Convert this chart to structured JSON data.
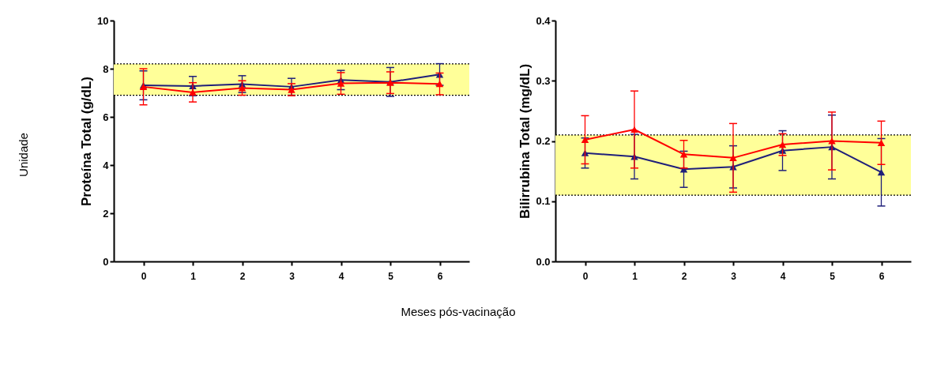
{
  "chart_data": [
    {
      "type": "line",
      "ylabel": "Proteína Total (g/dL)",
      "categories": [
        "0",
        "1",
        "2",
        "3",
        "4",
        "5",
        "6"
      ],
      "ylim": [
        0,
        10
      ],
      "yticks": [
        0,
        2,
        4,
        6,
        8,
        10
      ],
      "grid": false,
      "marker": "triangle",
      "line_style": "solid",
      "bands": [
        {
          "axis": "y",
          "from": 6.9,
          "to": 8.2,
          "color": "#ffff99"
        }
      ],
      "ref_lines": [
        {
          "axis": "y",
          "value": 6.9,
          "color": "#000000",
          "line_style": "dotted"
        },
        {
          "axis": "y",
          "value": 8.2,
          "color": "#000000",
          "line_style": "dotted"
        }
      ],
      "annotations": [
        "Unidade",
        "Meses pós-vacinação"
      ],
      "series": [
        {
          "color": "#1f1f7a",
          "values": [
            7.31,
            7.28,
            7.36,
            7.25,
            7.53,
            7.45,
            7.76
          ],
          "errors": [
            0.6,
            0.4,
            0.35,
            0.35,
            0.4,
            0.6,
            0.45
          ]
        },
        {
          "color": "#ff0000",
          "values": [
            7.25,
            7.02,
            7.2,
            7.13,
            7.39,
            7.42,
            7.37
          ],
          "errors": [
            0.75,
            0.4,
            0.3,
            0.25,
            0.45,
            0.45,
            0.45
          ]
        }
      ]
    },
    {
      "type": "line",
      "ylabel": "Bilirrubina Total (mg/dL)",
      "categories": [
        "0",
        "1",
        "2",
        "3",
        "4",
        "5",
        "6"
      ],
      "ylim": [
        0,
        0.4
      ],
      "yticks": [
        {
          "value": 0,
          "label": "0.0"
        },
        0.1,
        0.2,
        0.3,
        0.4
      ],
      "grid": false,
      "marker": "triangle",
      "line_style": "solid",
      "bands": [
        {
          "axis": "y",
          "from": 0.11,
          "to": 0.21,
          "color": "#ffff99"
        }
      ],
      "ref_lines": [
        {
          "axis": "y",
          "value": 0.11,
          "color": "#000000",
          "line_style": "dotted"
        },
        {
          "axis": "y",
          "value": 0.21,
          "color": "#000000",
          "line_style": "dotted"
        }
      ],
      "series": [
        {
          "color": "#1f1f7a",
          "values": [
            0.18,
            0.174,
            0.153,
            0.157,
            0.184,
            0.19,
            0.148
          ],
          "errors": [
            0.025,
            0.037,
            0.03,
            0.035,
            0.033,
            0.053,
            0.056
          ]
        },
        {
          "color": "#ff0000",
          "values": [
            0.202,
            0.219,
            0.178,
            0.172,
            0.194,
            0.2,
            0.197
          ],
          "errors": [
            0.04,
            0.064,
            0.023,
            0.057,
            0.018,
            0.048,
            0.036
          ]
        }
      ]
    }
  ]
}
